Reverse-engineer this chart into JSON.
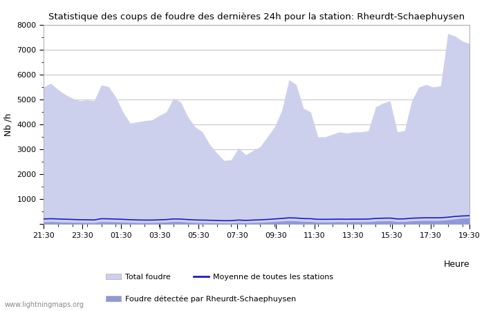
{
  "title": "Statistique des coups de foudre des dernières 24h pour la station: Rheurdt-Schaephuysen",
  "xlabel": "Heure",
  "ylabel": "Nb /h",
  "xlim_labels": [
    "21:30",
    "23:30",
    "01:30",
    "03:30",
    "05:30",
    "07:30",
    "09:30",
    "11:30",
    "13:30",
    "15:30",
    "17:30",
    "19:30"
  ],
  "ylim": [
    0,
    8000
  ],
  "yticks": [
    0,
    1000,
    2000,
    3000,
    4000,
    5000,
    6000,
    7000,
    8000
  ],
  "total_foudre_color": "#cdd0ed",
  "local_foudre_color": "#9099d8",
  "moyenne_color": "#1a1acc",
  "background_color": "#ffffff",
  "plot_bg_color": "#ffffff",
  "grid_color": "#c8c8c8",
  "watermark": "www.lightningmaps.org",
  "legend_labels": [
    "Total foudre",
    "Moyenne de toutes les stations",
    "Foudre détectée par Rheurdt-Schaephuysen"
  ],
  "total_foudre": [
    5500,
    5650,
    5400,
    5200,
    5050,
    4950,
    4980,
    4950,
    5580,
    5520,
    5100,
    4500,
    4050,
    4100,
    4150,
    4180,
    4350,
    4500,
    5050,
    4900,
    4300,
    3900,
    3700,
    3200,
    2850,
    2550,
    2580,
    3050,
    2780,
    2950,
    3100,
    3500,
    3900,
    4550,
    5800,
    5600,
    4650,
    4500,
    3500,
    3500,
    3600,
    3700,
    3650,
    3700,
    3700,
    3750,
    4700,
    4850,
    4950,
    3700,
    3750,
    4950,
    5500,
    5600,
    5500,
    5550,
    7650,
    7550,
    7350,
    7250
  ],
  "local_foudre": [
    80,
    90,
    80,
    70,
    65,
    60,
    55,
    50,
    90,
    85,
    80,
    70,
    60,
    55,
    50,
    50,
    65,
    75,
    95,
    90,
    70,
    55,
    50,
    45,
    40,
    35,
    35,
    55,
    45,
    55,
    65,
    80,
    95,
    110,
    130,
    120,
    100,
    95,
    75,
    75,
    80,
    85,
    80,
    85,
    85,
    90,
    110,
    120,
    125,
    90,
    95,
    120,
    130,
    140,
    135,
    140,
    165,
    200,
    230,
    240
  ],
  "moyenne": [
    200,
    210,
    200,
    190,
    180,
    170,
    165,
    160,
    210,
    205,
    195,
    185,
    170,
    160,
    155,
    155,
    165,
    175,
    200,
    195,
    175,
    160,
    155,
    148,
    140,
    130,
    132,
    155,
    142,
    155,
    165,
    180,
    200,
    220,
    245,
    238,
    215,
    210,
    185,
    185,
    188,
    192,
    188,
    192,
    192,
    196,
    220,
    230,
    235,
    200,
    205,
    230,
    240,
    248,
    245,
    248,
    270,
    300,
    320,
    330
  ]
}
